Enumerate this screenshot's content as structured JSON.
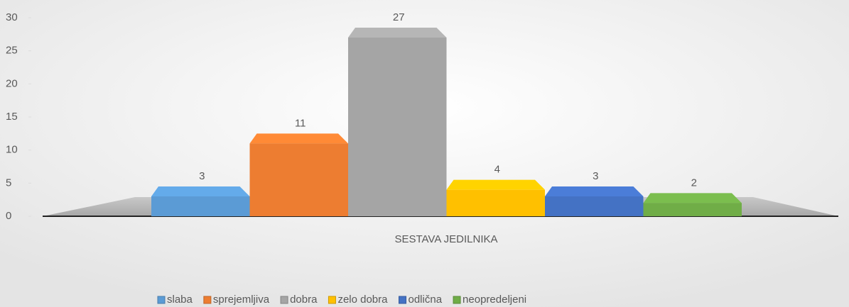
{
  "chart_data": {
    "type": "bar3d",
    "categories": [
      "SESTAVA JEDILNIKA"
    ],
    "series": [
      {
        "name": "slaba",
        "color": "#5b9bd5",
        "values": [
          3
        ]
      },
      {
        "name": "sprejemljiva",
        "color": "#ed7d31",
        "values": [
          11
        ]
      },
      {
        "name": "dobra",
        "color": "#a5a5a5",
        "values": [
          27
        ]
      },
      {
        "name": "zelo dobra",
        "color": "#ffc000",
        "values": [
          4
        ]
      },
      {
        "name": "odlična",
        "color": "#4472c4",
        "values": [
          3
        ]
      },
      {
        "name": "neopredeljeni",
        "color": "#70ad47",
        "values": [
          2
        ]
      }
    ],
    "ylim": [
      0,
      30
    ],
    "yticks": [
      0,
      5,
      10,
      15,
      20,
      25,
      30
    ],
    "legend": "bottom"
  }
}
